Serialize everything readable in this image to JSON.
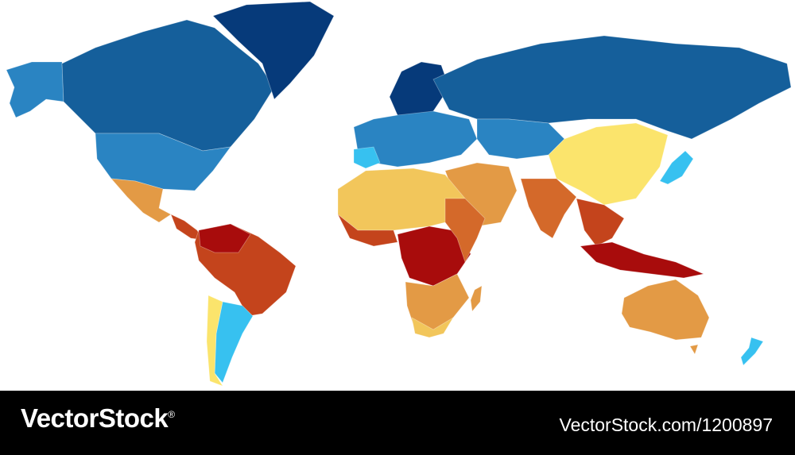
{
  "watermark": {
    "brand": "VectorStock",
    "brand_mark": "®",
    "reference": "VectorStock.com/1200897"
  },
  "map": {
    "palette": {
      "dark-blue": "#063a7a",
      "blue": "#155f9b",
      "mid-blue": "#2a84c2",
      "light-blue": "#37c1f0",
      "yellow": "#fbe46c",
      "light-orange": "#f2c65b",
      "orange": "#e39a45",
      "dark-orange": "#d4692a",
      "red-orange": "#c4441c",
      "red": "#a80c0c"
    }
  }
}
